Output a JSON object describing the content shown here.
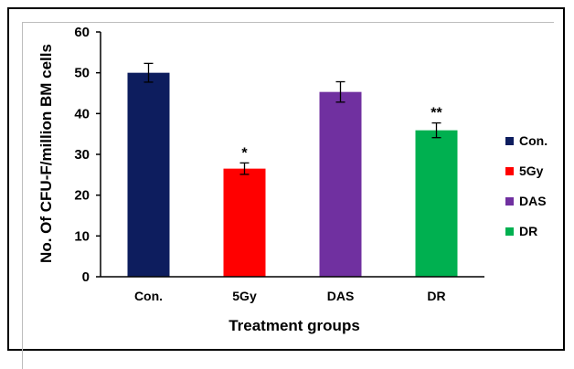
{
  "chart_data": {
    "type": "bar",
    "title": "",
    "xlabel": "Treatment groups",
    "ylabel": "No. Of CFU-F/million BM cells",
    "ylim": [
      0,
      60
    ],
    "yticks": [
      0,
      10,
      20,
      30,
      40,
      50,
      60
    ],
    "categories": [
      "Con.",
      "5Gy",
      "DAS",
      "DR"
    ],
    "values": [
      50,
      26.5,
      45.3,
      35.9
    ],
    "errors": [
      2.3,
      1.4,
      2.5,
      1.8
    ],
    "annotations": [
      "",
      "*",
      "",
      "**"
    ],
    "colors": [
      "#0d1d5e",
      "#ff0000",
      "#7030a0",
      "#00b050"
    ],
    "legend": {
      "position": "right",
      "entries": [
        "Con.",
        "5Gy",
        "DAS",
        "DR"
      ]
    },
    "grid": false
  }
}
